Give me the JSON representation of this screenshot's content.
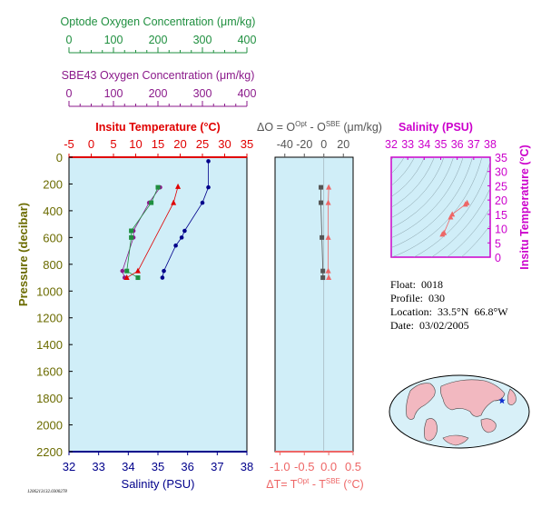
{
  "colors": {
    "optode": "#1f8f3f",
    "sbe": "#8b1a8b",
    "temp": "#e00000",
    "sal": "#00008b",
    "pressure": "#6b6b00",
    "deltaO": "#555555",
    "deltaT": "#ee6666",
    "tsAxis": "#cc00cc",
    "plotBg": "#d0eef8"
  },
  "optode_axis": {
    "title": "Optode Oxygen Concentration (μm/kg)",
    "ticks": [
      "0",
      "100",
      "200",
      "300",
      "400"
    ]
  },
  "sbe_axis": {
    "title": "SBE43 Oxygen Concentration (μm/kg)",
    "ticks": [
      "0",
      "100",
      "200",
      "300",
      "400"
    ]
  },
  "info": {
    "float": "Float:  0018",
    "profile": "Profile:  030",
    "location": "Location:  33.5°N  66.8°W",
    "date": "Date:  03/02/2005"
  },
  "footer_id": "1206213132.0300278",
  "map": {
    "marker": "star"
  },
  "chart_data": [
    {
      "type": "line",
      "name": "profiles",
      "ylabel": "Pressure (decibar)",
      "ylim": [
        2200,
        0
      ],
      "yticks": [
        "0",
        "200",
        "400",
        "600",
        "800",
        "1000",
        "1200",
        "1400",
        "1600",
        "1800",
        "2000",
        "2200"
      ],
      "top_axis": {
        "label": "Insitu Temperature (°C)",
        "range": [
          -5,
          35
        ],
        "ticks": [
          "-5",
          "0",
          "5",
          "10",
          "15",
          "20",
          "25",
          "30",
          "35"
        ]
      },
      "bottom_axis": {
        "label": "Salinity (PSU)",
        "range": [
          32,
          38
        ],
        "ticks": [
          "32",
          "33",
          "34",
          "35",
          "36",
          "37",
          "38"
        ]
      },
      "oxygen_range": [
        0,
        400
      ],
      "temperature": {
        "pressure": [
          220,
          340,
          850,
          900
        ],
        "values": [
          19.5,
          18.5,
          10.5,
          8
        ]
      },
      "salinity": {
        "pressure": [
          30,
          225,
          340,
          550,
          600,
          660,
          850,
          900
        ],
        "values": [
          36.7,
          36.7,
          36.5,
          35.9,
          35.8,
          35.6,
          35.2,
          35.15
        ]
      },
      "oxygen_optode": {
        "pressure": [
          225,
          340,
          550,
          600,
          850,
          900
        ],
        "values": [
          200,
          185,
          140,
          140,
          130,
          155
        ]
      },
      "oxygen_sbe": {
        "pressure": [
          225,
          340,
          550,
          600,
          850,
          900
        ],
        "values": [
          205,
          180,
          145,
          145,
          120,
          125
        ]
      }
    },
    {
      "type": "line",
      "name": "differences",
      "top_axis": {
        "label": "ΔO = O",
        "sup1": "Opt",
        "mid": " - O",
        "sup2": "SBE",
        "unit": " (μm/kg)",
        "range": [
          -50,
          30
        ],
        "ticks": [
          "-40",
          "-20",
          "0",
          "20"
        ]
      },
      "bottom_axis": {
        "label": "ΔT= T",
        "sup1": "Opt",
        "mid": " - T",
        "sup2": "SBE",
        "unit": " (°C)",
        "range": [
          -1.1,
          0.5
        ],
        "ticks": [
          "-1.0",
          "-0.5",
          "0.0",
          "0.5"
        ]
      },
      "deltaO": {
        "pressure": [
          225,
          340,
          600,
          850,
          900
        ],
        "values": [
          -3,
          -3,
          -2,
          -1,
          -1
        ]
      },
      "deltaT": {
        "pressure": [
          225,
          340,
          600,
          850,
          900
        ],
        "values": [
          0.0,
          -0.01,
          -0.01,
          -0.01,
          0.0
        ]
      }
    },
    {
      "type": "scatter",
      "name": "ts_diagram",
      "xlabel": "Salinity (PSU)",
      "ylabel": "Insitu Temperature (°C)",
      "xlim": [
        32,
        38
      ],
      "ylim": [
        0,
        35
      ],
      "xticks": [
        "32",
        "33",
        "34",
        "35",
        "36",
        "37",
        "38"
      ],
      "yticks": [
        "0",
        "5",
        "10",
        "15",
        "20",
        "25",
        "30",
        "35"
      ],
      "points": [
        [
          36.6,
          19
        ],
        [
          36.5,
          18.5
        ],
        [
          35.7,
          15
        ],
        [
          35.6,
          14
        ],
        [
          35.2,
          8.5
        ],
        [
          35.1,
          8
        ]
      ]
    }
  ]
}
